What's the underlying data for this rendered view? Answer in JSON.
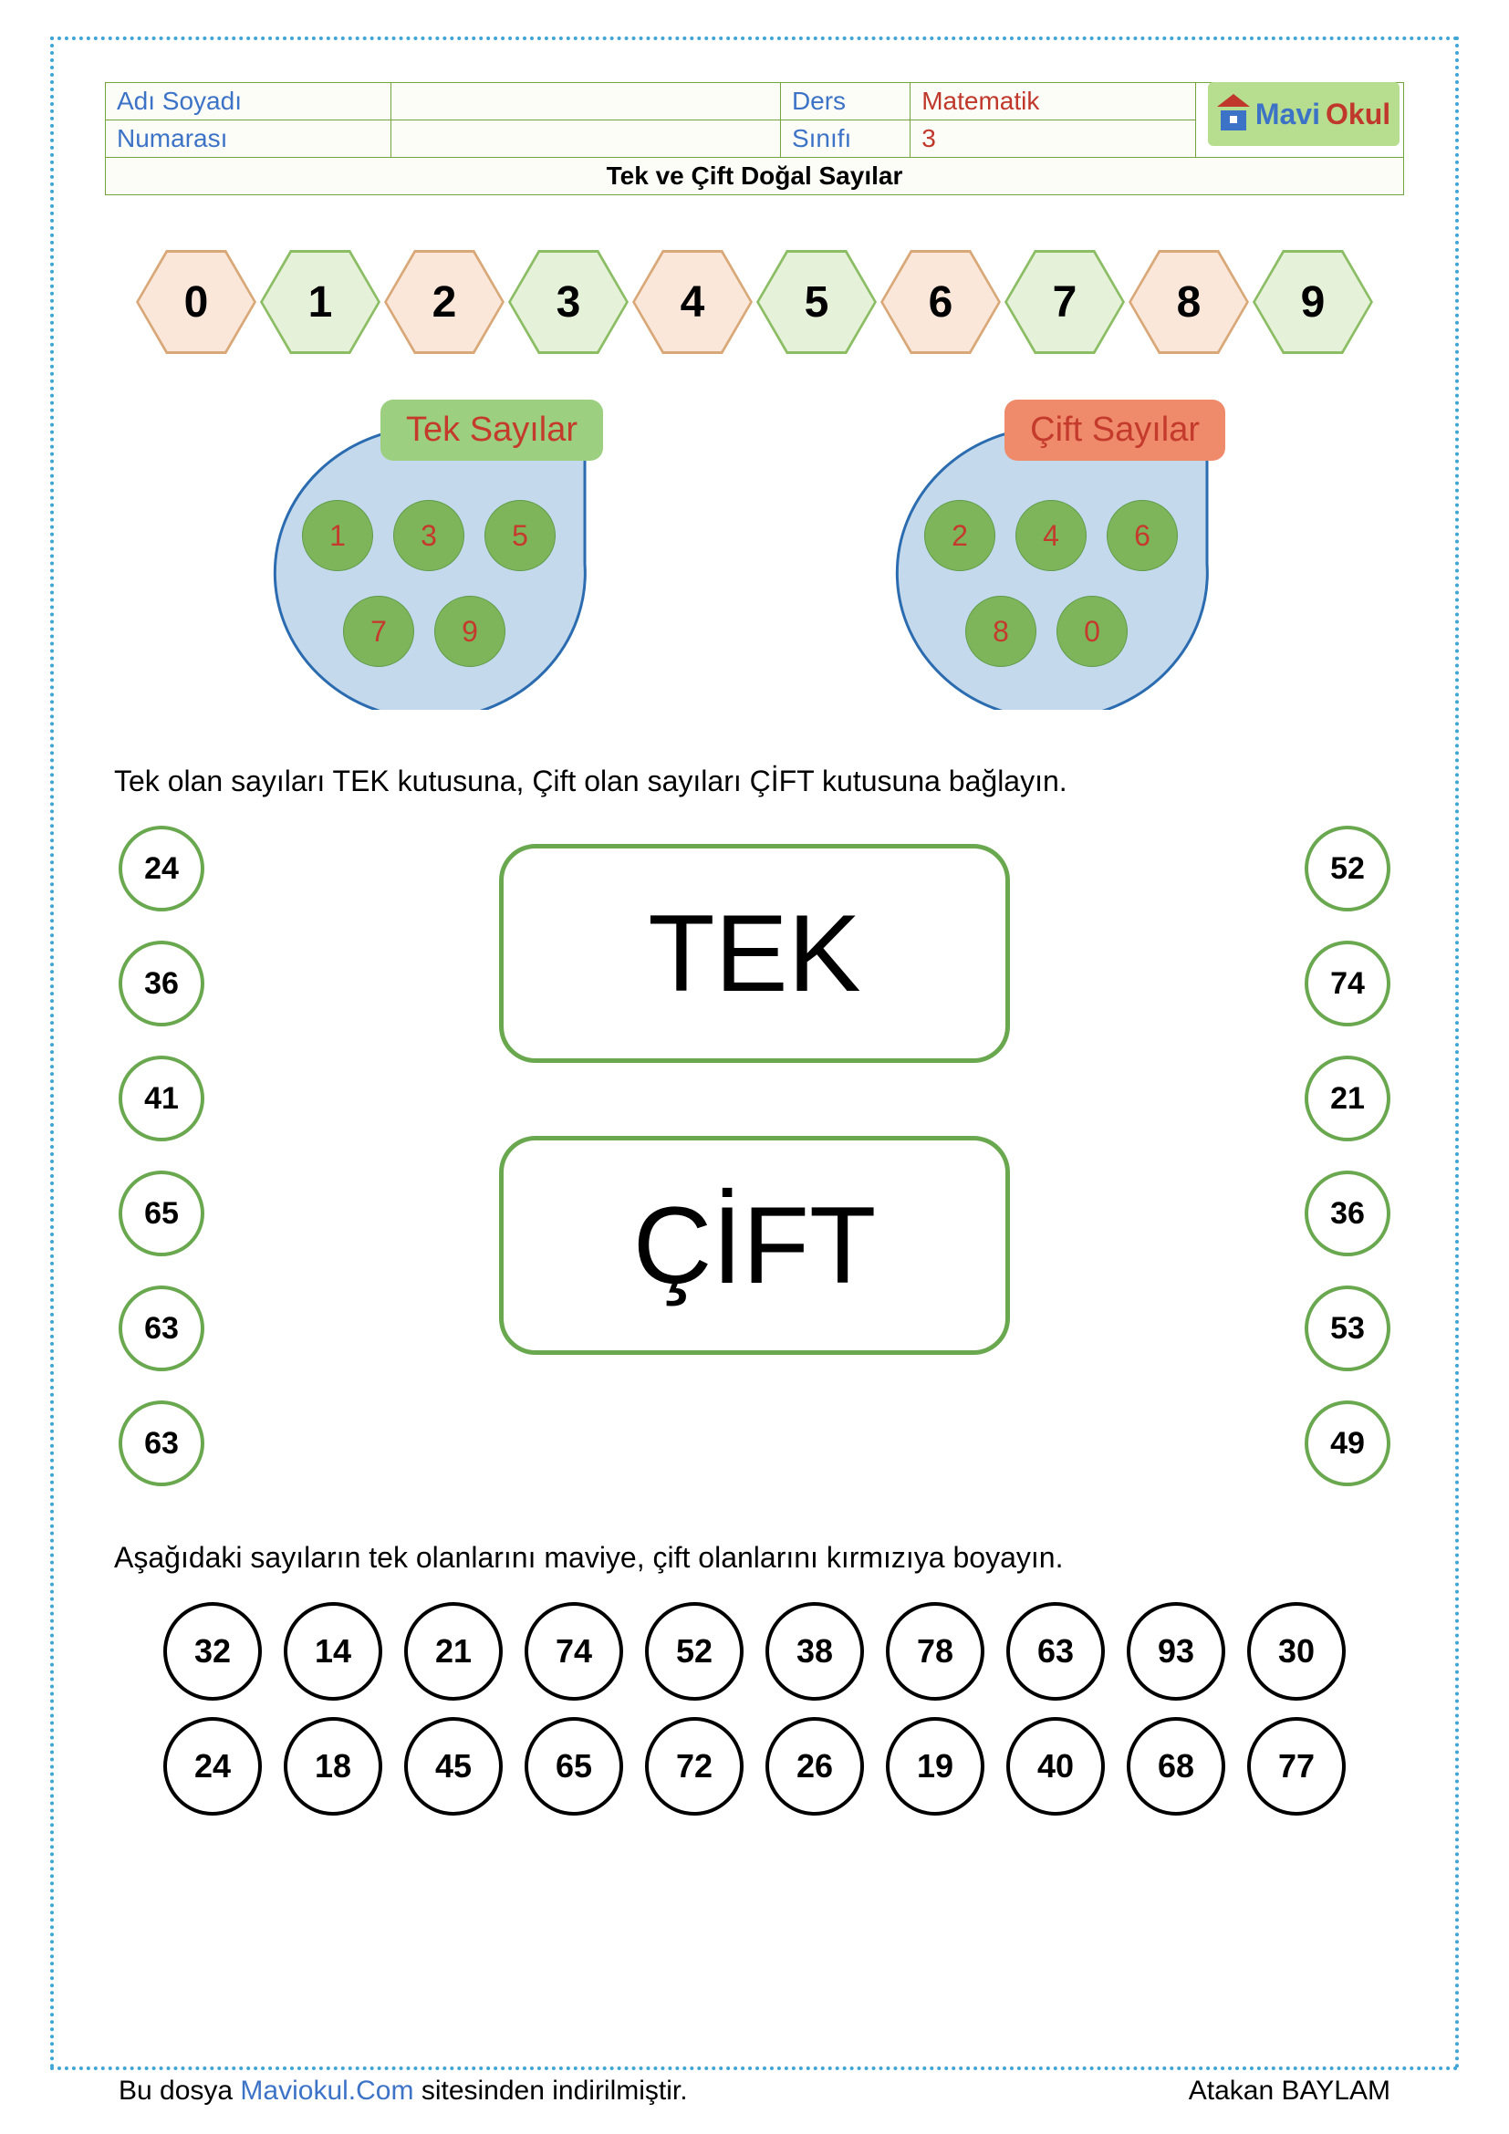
{
  "colors": {
    "dot_border": "#3fa5d6",
    "blue": "#3d73c7",
    "red": "#c0382b",
    "green_border": "#6aa84f",
    "hex_even_fill": "#fae7d9",
    "hex_even_border": "#d9a879",
    "hex_odd_fill": "#e6f1d9",
    "hex_odd_border": "#8bbd64",
    "drop_fill": "#c5d9ec",
    "drop_stroke": "#2b6cb0",
    "drop_label_odd_bg": "#9dcf80",
    "drop_label_even_bg": "#ef8b6b",
    "ncircle_bg": "#7eb55b",
    "ex1_circle_border": "#6aa84f",
    "ex2_circle_border": "#000000",
    "big_box_border": "#6aa84f"
  },
  "header": {
    "name_label": "Adı Soyadı",
    "number_label": "Numarası",
    "lesson_label": "Ders",
    "class_label": "Sınıfı",
    "lesson_value": "Matematik",
    "class_value": "3",
    "title": "Tek ve Çift Doğal Sayılar"
  },
  "logo": {
    "part1": "Mavi",
    "part2": "Okul"
  },
  "hex_numbers": [
    "0",
    "1",
    "2",
    "3",
    "4",
    "5",
    "6",
    "7",
    "8",
    "9"
  ],
  "drops": {
    "odd": {
      "label": "Tek Sayılar",
      "nums": [
        "1",
        "3",
        "5",
        "7",
        "9"
      ]
    },
    "even": {
      "label": "Çift Sayılar",
      "nums": [
        "2",
        "4",
        "6",
        "8",
        "0"
      ]
    }
  },
  "ex1": {
    "instruction": "Tek olan sayıları TEK kutusuna, Çift olan sayıları ÇİFT kutusuna bağlayın.",
    "left": [
      "24",
      "36",
      "41",
      "65",
      "63",
      "63"
    ],
    "right": [
      "52",
      "74",
      "21",
      "36",
      "53",
      "49"
    ],
    "box_odd": "TEK",
    "box_even": "ÇİFT"
  },
  "ex2": {
    "instruction": "Aşağıdaki sayıların tek olanlarını maviye, çift olanlarını kırmızıya boyayın.",
    "row1": [
      "32",
      "14",
      "21",
      "74",
      "52",
      "38",
      "78",
      "63",
      "93",
      "30"
    ],
    "row2": [
      "24",
      "18",
      "45",
      "65",
      "72",
      "26",
      "19",
      "40",
      "68",
      "77"
    ]
  },
  "footer": {
    "pre": "Bu dosya ",
    "site": "Maviokul.Com",
    "post": " sitesinden indirilmiştir.",
    "author": "Atakan BAYLAM"
  }
}
